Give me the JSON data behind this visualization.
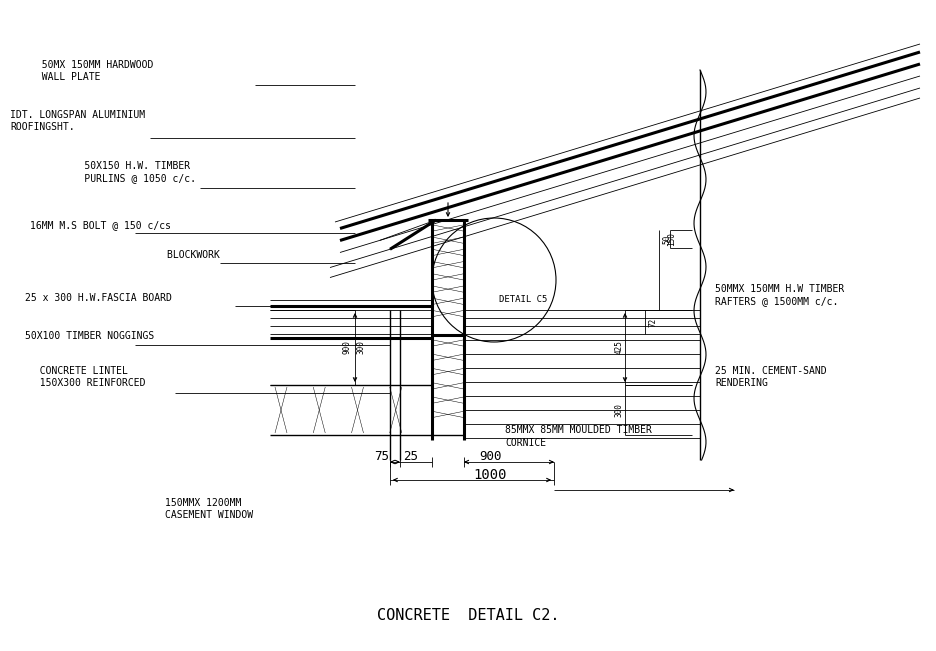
{
  "title": "CONCRETE  DETAIL C2.",
  "bg_color": "#ffffff",
  "line_color": "#000000",
  "fig_width": 9.36,
  "fig_height": 6.51,
  "labels": {
    "hardwood": "  50MX 150MM HARDWOOD\n  WALL PLATE",
    "aluminium": "IDT. LONGSPAN ALUMINIUM\nROOFINGSHT.",
    "purlins": "     50X150 H.W. TIMBER\n     PURLINS @ 1050 c/c.",
    "bolt": "16MM M.S BOLT @ 150 c/cs",
    "blockwork": "        BLOCKWORK",
    "fascia": "25 x 300 H.W.FASCIA BOARD",
    "noggings": "50X100 TIMBER NOGGINGS",
    "lintel": "  CONCRETE LINTEL\n  150X300 REINFORCED",
    "dim75": "75",
    "dim25": "25",
    "dim900h": "900",
    "dim1000": "1000",
    "casement": "150MMX 1200MM\nCASEMENT WINDOW",
    "detail_c5": "DETAIL C5",
    "rafters": "50MMX 150MM H.W TIMBER\nRAFTERS @ 1500MM c/c.",
    "rendering": "25 MIN. CEMENT-SAND\nRENDERING",
    "cornice_line1": "85MMX 85MM MOULDED TIMBER",
    "cornice_line2": "CORNICE"
  }
}
